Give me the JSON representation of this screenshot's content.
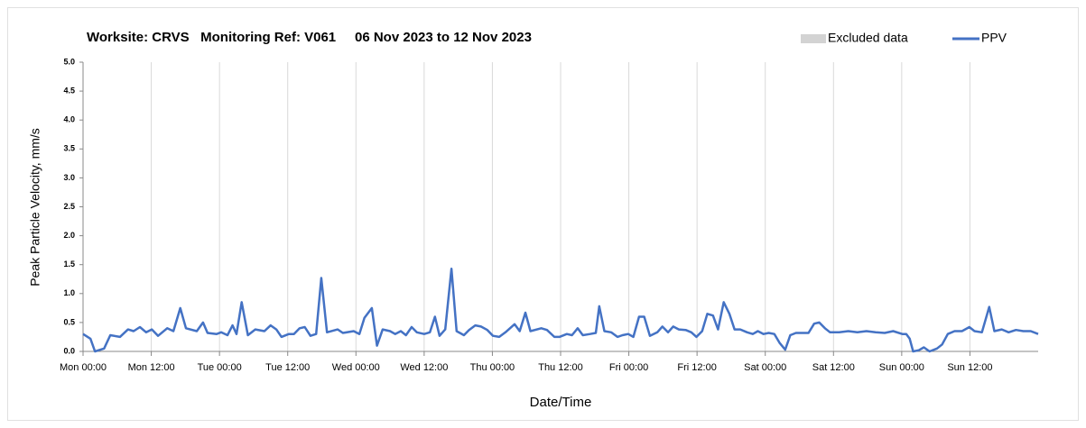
{
  "chart_data": {
    "type": "line",
    "title": "Worksite: CRVS   Monitoring Ref: V061     06 Nov 2023 to 12 Nov 2023",
    "y_label": "Peak Particle Velocity, mm/s",
    "x_label": "Date/Time",
    "legend_items": [
      {
        "name": "Excluded data",
        "color": "#d3d3d3"
      }
    ],
    "x": [
      0,
      1.3,
      2.1,
      3.7,
      4.8,
      6.5,
      7.9,
      8.9,
      10,
      11.1,
      12.1,
      13.2,
      14.8,
      15.9,
      17.1,
      18.1,
      20,
      21.1,
      21.9,
      23.5,
      24.3,
      25.4,
      26.3,
      27,
      27.9,
      29,
      30.3,
      31.9,
      33,
      34,
      34.9,
      36.2,
      37.1,
      38.1,
      39,
      40,
      41,
      41.9,
      42.9,
      44.8,
      45.7,
      47.6,
      48.6,
      49.5,
      50.8,
      51.7,
      52.7,
      54,
      54.9,
      55.9,
      56.8,
      57.8,
      58.7,
      60,
      61,
      61.9,
      62.7,
      63.7,
      64.8,
      65.7,
      67,
      67.9,
      69,
      70,
      71.1,
      72.1,
      73.2,
      74.3,
      75.9,
      76.8,
      77.8,
      78.7,
      80.6,
      81.6,
      82.9,
      83.8,
      85.1,
      86,
      87,
      87.9,
      89.2,
      90.2,
      90.8,
      91.7,
      92.9,
      94,
      94.9,
      95.9,
      96.8,
      97.8,
      98.7,
      99.7,
      101,
      101.9,
      102.9,
      103.8,
      104.8,
      106,
      107,
      107.9,
      108.9,
      109.8,
      110.8,
      111.7,
      112.7,
      113.7,
      114.6,
      115.6,
      116.8,
      117.8,
      118.7,
      119.7,
      120.6,
      121.6,
      122.5,
      123.5,
      124.4,
      125.4,
      126.7,
      127.6,
      128.6,
      129.5,
      130.5,
      131.4,
      133,
      134.6,
      136.2,
      137.8,
      139.4,
      141,
      142.5,
      144.1,
      144.8,
      145.4,
      146,
      147,
      147.9,
      148.9,
      150.2,
      151.1,
      152.1,
      153.3,
      154.6,
      155.9,
      156.8,
      158.1,
      159.4,
      160.3,
      161.6,
      162.8,
      164.1,
      165.4,
      166.7,
      168
    ],
    "series": [
      {
        "name": "PPV",
        "color": "#4472c4",
        "values": [
          0.3,
          0.22,
          0.0,
          0.05,
          0.28,
          0.25,
          0.38,
          0.35,
          0.42,
          0.33,
          0.38,
          0.27,
          0.4,
          0.35,
          0.75,
          0.4,
          0.35,
          0.5,
          0.32,
          0.3,
          0.33,
          0.28,
          0.45,
          0.3,
          0.85,
          0.28,
          0.38,
          0.35,
          0.45,
          0.38,
          0.25,
          0.3,
          0.3,
          0.4,
          0.42,
          0.27,
          0.3,
          1.27,
          0.33,
          0.38,
          0.32,
          0.35,
          0.3,
          0.58,
          0.75,
          0.1,
          0.38,
          0.35,
          0.3,
          0.35,
          0.28,
          0.42,
          0.33,
          0.3,
          0.33,
          0.6,
          0.27,
          0.38,
          1.43,
          0.35,
          0.28,
          0.37,
          0.45,
          0.43,
          0.37,
          0.27,
          0.25,
          0.33,
          0.47,
          0.35,
          0.67,
          0.35,
          0.4,
          0.37,
          0.25,
          0.25,
          0.3,
          0.28,
          0.4,
          0.28,
          0.3,
          0.32,
          0.78,
          0.35,
          0.33,
          0.25,
          0.28,
          0.3,
          0.25,
          0.6,
          0.6,
          0.27,
          0.33,
          0.43,
          0.33,
          0.43,
          0.38,
          0.37,
          0.33,
          0.25,
          0.35,
          0.65,
          0.62,
          0.38,
          0.85,
          0.65,
          0.38,
          0.38,
          0.33,
          0.3,
          0.35,
          0.3,
          0.32,
          0.3,
          0.15,
          0.03,
          0.28,
          0.32,
          0.32,
          0.32,
          0.48,
          0.5,
          0.4,
          0.33,
          0.33,
          0.35,
          0.33,
          0.35,
          0.33,
          0.32,
          0.35,
          0.3,
          0.3,
          0.22,
          0.0,
          0.02,
          0.07,
          0.0,
          0.05,
          0.12,
          0.3,
          0.35,
          0.35,
          0.42,
          0.35,
          0.33,
          0.77,
          0.35,
          0.38,
          0.33,
          0.37,
          0.35,
          0.35,
          0.3
        ]
      }
    ],
    "xlim": [
      0,
      168
    ],
    "xticks": [
      {
        "value": 0,
        "label": "Mon 00:00"
      },
      {
        "value": 12,
        "label": "Mon 12:00"
      },
      {
        "value": 24,
        "label": "Tue 00:00"
      },
      {
        "value": 36,
        "label": "Tue 12:00"
      },
      {
        "value": 48,
        "label": "Wed 00:00"
      },
      {
        "value": 60,
        "label": "Wed 12:00"
      },
      {
        "value": 72,
        "label": "Thu 00:00"
      },
      {
        "value": 84,
        "label": "Thu 12:00"
      },
      {
        "value": 96,
        "label": "Fri 00:00"
      },
      {
        "value": 108,
        "label": "Fri 12:00"
      },
      {
        "value": 120,
        "label": "Sat 00:00"
      },
      {
        "value": 132,
        "label": "Sat 12:00"
      },
      {
        "value": 144,
        "label": "Sun 00:00"
      },
      {
        "value": 156,
        "label": "Sun 12:00"
      }
    ],
    "ylim": [
      0,
      5
    ],
    "yticks": [
      {
        "value": 0,
        "label": "0.0"
      },
      {
        "value": 0.5,
        "label": "0.5"
      },
      {
        "value": 1,
        "label": "1.0"
      },
      {
        "value": 1.5,
        "label": "1.5"
      },
      {
        "value": 2,
        "label": "2.0"
      },
      {
        "value": 2.5,
        "label": "2.5"
      },
      {
        "value": 3,
        "label": "3.0"
      },
      {
        "value": 3.5,
        "label": "3.5"
      },
      {
        "value": 4,
        "label": "4.0"
      },
      {
        "value": 4.5,
        "label": "4.5"
      },
      {
        "value": 5,
        "label": "5.0"
      }
    ],
    "grid": "x",
    "legend_position": "top-right"
  }
}
